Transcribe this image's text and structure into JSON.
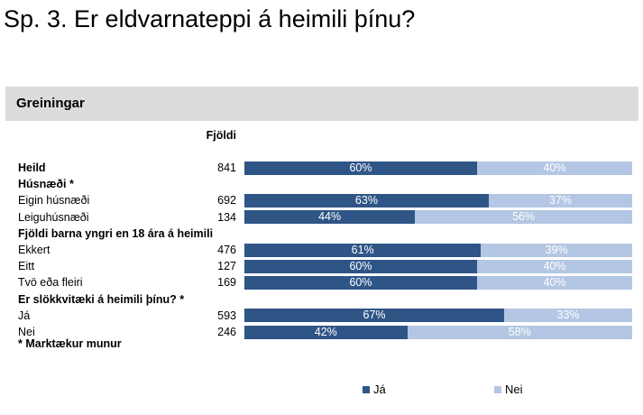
{
  "title": "Sp. 3. Er eldvarnateppi á heimili þínu?",
  "section_label": "Greiningar",
  "count_header": "Fjöldi",
  "footnote": "* Marktækur munur",
  "colors": {
    "ja": "#2f5587",
    "nei": "#b3c6e3"
  },
  "chart_data": {
    "type": "bar",
    "stacked": true,
    "orientation": "horizontal",
    "value_format": "percent",
    "xlim": [
      0,
      100
    ],
    "legend_placement": "bottom",
    "series_names": [
      "Já",
      "Nei"
    ],
    "rows": [
      {
        "label": "Heild",
        "kind": "total",
        "count": "841",
        "ja": 60,
        "nei": 40
      },
      {
        "label": "Húsnæði *",
        "kind": "group"
      },
      {
        "label": "Eigin húsnæði",
        "kind": "data",
        "count": "692",
        "ja": 63,
        "nei": 37
      },
      {
        "label": "Leiguhúsnæði",
        "kind": "data",
        "count": "134",
        "ja": 44,
        "nei": 56
      },
      {
        "label": "Fjöldi barna yngri en 18 ára á heimili",
        "kind": "group"
      },
      {
        "label": "Ekkert",
        "kind": "data",
        "count": "476",
        "ja": 61,
        "nei": 39
      },
      {
        "label": "Eitt",
        "kind": "data",
        "count": "127",
        "ja": 60,
        "nei": 40
      },
      {
        "label": "Tvö eða fleiri",
        "kind": "data",
        "count": "169",
        "ja": 60,
        "nei": 40
      },
      {
        "label": "Er slökkvitæki á heimili þínu? *",
        "kind": "group"
      },
      {
        "label": "Já",
        "kind": "data",
        "count": "593",
        "ja": 67,
        "nei": 33
      },
      {
        "label": "Nei",
        "kind": "data",
        "count": "246",
        "ja": 42,
        "nei": 58
      }
    ]
  }
}
